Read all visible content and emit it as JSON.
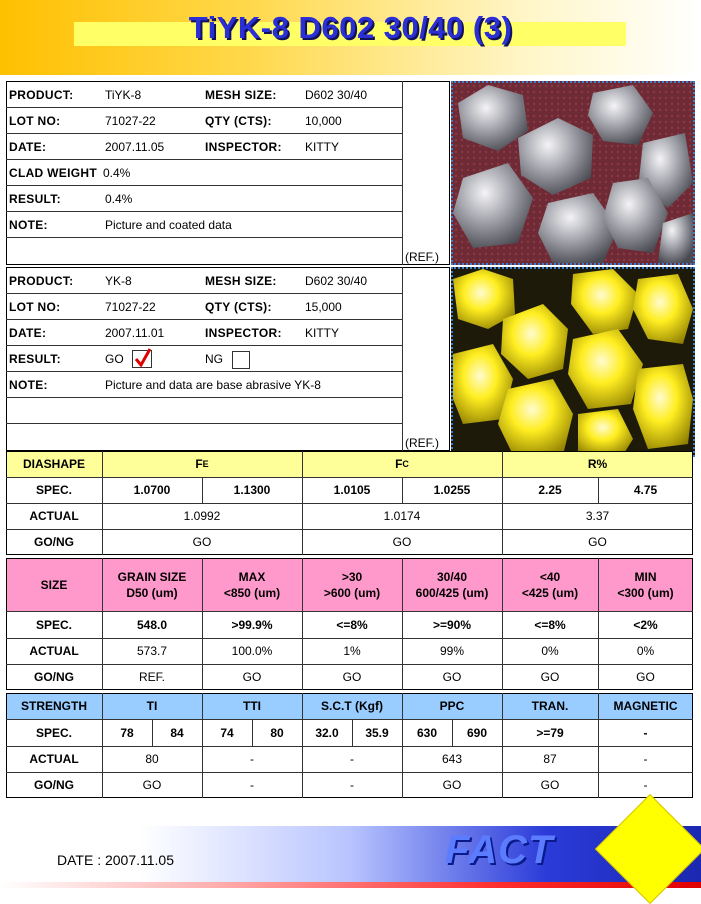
{
  "title": "TiYK-8 D602 30/40 (3)",
  "clad": {
    "rows": [
      {
        "l1": "PRODUCT:",
        "v1": "TiYK-8",
        "l2": "MESH SIZE:",
        "v2": "D602 30/40"
      },
      {
        "l1": "LOT NO:",
        "v1": "71027-22",
        "l2": "QTY (CTS):",
        "v2": "10,000"
      },
      {
        "l1": "DATE:",
        "v1": "2007.11.05",
        "l2": "INSPECTOR:",
        "v2": "KITTY"
      },
      {
        "l1": "CLAD WEIGHT",
        "v1": "0.4%"
      },
      {
        "l1": "RESULT:",
        "v1": "0.4%"
      },
      {
        "l1": "NOTE:",
        "v1": "Picture and coated data"
      }
    ],
    "ref": "(REF.)"
  },
  "base": {
    "rows": [
      {
        "l1": "PRODUCT:",
        "v1": "YK-8",
        "l2": "MESH SIZE:",
        "v2": "D602 30/40"
      },
      {
        "l1": "LOT NO:",
        "v1": "71027-22",
        "l2": "QTY (CTS):",
        "v2": "15,000"
      },
      {
        "l1": "DATE:",
        "v1": "2007.11.01",
        "l2": "INSPECTOR:",
        "v2": "KITTY"
      },
      {
        "l1": "RESULT:",
        "go": "GO",
        "ng": "NG"
      },
      {
        "l1": "NOTE:",
        "v1": "Picture and data are base abrasive YK-8"
      }
    ],
    "ref": "(REF.)"
  },
  "dia": {
    "header": [
      "DIASHAPE",
      "F",
      "E",
      "F",
      "C",
      "R%"
    ],
    "spec_label": "SPEC.",
    "spec": [
      "1.0700",
      "1.1300",
      "1.0105",
      "1.0255",
      "2.25",
      "4.75"
    ],
    "actual_label": "ACTUAL",
    "actual": [
      "1.0992",
      "1.0174",
      "3.37"
    ],
    "gong_label": "GO/NG",
    "gong": [
      "GO",
      "GO",
      "GO"
    ]
  },
  "size": {
    "header_label": "SIZE",
    "headers": [
      [
        "GRAIN SIZE",
        "D50 (um)"
      ],
      [
        "MAX",
        "<850 (um)"
      ],
      [
        ">30",
        ">600 (um)"
      ],
      [
        "30/40",
        "600/425 (um)"
      ],
      [
        "<40",
        "<425 (um)"
      ],
      [
        "MIN",
        "<300 (um)"
      ]
    ],
    "spec_label": "SPEC.",
    "spec": [
      "548.0",
      ">99.9%",
      "<=8%",
      ">=90%",
      "<=8%",
      "<2%"
    ],
    "actual_label": "ACTUAL",
    "actual": [
      "573.7",
      "100.0%",
      "1%",
      "99%",
      "0%",
      "0%"
    ],
    "gong_label": "GO/NG",
    "gong": [
      "REF.",
      "GO",
      "GO",
      "GO",
      "GO",
      "GO"
    ]
  },
  "strength": {
    "headers": [
      "STRENGTH",
      "TI",
      "TTI",
      "S.C.T (Kgf)",
      "PPC",
      "TRAN.",
      "MAGNETIC"
    ],
    "spec_label": "SPEC.",
    "spec": [
      "78",
      "84",
      "74",
      "80",
      "32.0",
      "35.9",
      "630",
      "690",
      ">=79",
      "-"
    ],
    "actual_label": "ACTUAL",
    "actual": [
      "80",
      "-",
      "-",
      "643",
      "87",
      "-"
    ],
    "gong_label": "GO/NG",
    "gong": [
      "GO",
      "-",
      "-",
      "GO",
      "GO",
      "-"
    ]
  },
  "footer": {
    "date": "DATE : 2007.11.05",
    "logo": "FACT"
  },
  "colors": {
    "yellow_header": "#ffff99",
    "pink_header": "#ff99cc",
    "blue_header": "#99ccff",
    "title_blue": "#2b2fd6",
    "check_red": "#e00000"
  }
}
